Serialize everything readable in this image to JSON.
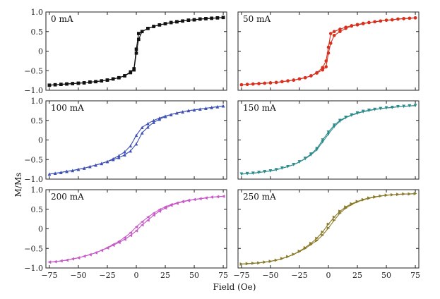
{
  "figure": {
    "ylabel": "M/Ms",
    "xlabel": "Field (Oe)"
  },
  "chart_data": [
    {
      "type": "line",
      "title": "0 mA",
      "color": "#111111",
      "marker": "square",
      "xlim": [
        -78,
        78
      ],
      "ylim": [
        -1.0,
        1.0
      ],
      "xticks": [
        -75,
        -50,
        -25,
        0,
        25,
        50,
        75
      ],
      "yticks": [
        -1.0,
        -0.5,
        0,
        0.5,
        1.0
      ],
      "ytick_labels": [
        "−1.0",
        "−0.5",
        "0",
        "0.5",
        "1.0"
      ],
      "series": [
        {
          "x": [
            -75,
            -70,
            -65,
            -60,
            -55,
            -50,
            -45,
            -40,
            -35,
            -30,
            -25,
            -20,
            -15,
            -10,
            -5,
            -2,
            0,
            2,
            5,
            10,
            15,
            20,
            25,
            30,
            35,
            40,
            45,
            50,
            55,
            60,
            65,
            70,
            75
          ],
          "y": [
            -0.87,
            -0.86,
            -0.85,
            -0.84,
            -0.83,
            -0.82,
            -0.81,
            -0.79,
            -0.78,
            -0.76,
            -0.74,
            -0.71,
            -0.68,
            -0.63,
            -0.55,
            -0.45,
            0.05,
            0.45,
            0.5,
            0.58,
            0.63,
            0.67,
            0.7,
            0.73,
            0.75,
            0.77,
            0.79,
            0.8,
            0.82,
            0.83,
            0.84,
            0.85,
            0.86
          ]
        },
        {
          "x": [
            -75,
            -70,
            -65,
            -60,
            -55,
            -50,
            -45,
            -40,
            -35,
            -30,
            -25,
            -20,
            -15,
            -10,
            -5,
            -2,
            0,
            2,
            5,
            10,
            15,
            20,
            25,
            30,
            35,
            40,
            45,
            50,
            55,
            60,
            65,
            70,
            75
          ],
          "y": [
            -0.87,
            -0.86,
            -0.85,
            -0.84,
            -0.83,
            -0.82,
            -0.81,
            -0.79,
            -0.78,
            -0.76,
            -0.74,
            -0.71,
            -0.68,
            -0.63,
            -0.53,
            -0.48,
            -0.05,
            0.3,
            0.5,
            0.58,
            0.63,
            0.67,
            0.7,
            0.73,
            0.75,
            0.77,
            0.79,
            0.8,
            0.82,
            0.83,
            0.84,
            0.85,
            0.86
          ]
        }
      ]
    },
    {
      "type": "line",
      "title": "50 mA",
      "color": "#d9301e",
      "marker": "circle",
      "xlim": [
        -78,
        78
      ],
      "ylim": [
        -1.0,
        1.0
      ],
      "xticks": [
        -75,
        -50,
        -25,
        0,
        25,
        50,
        75
      ],
      "yticks": [
        -1.0,
        -0.5,
        0,
        0.5,
        1.0
      ],
      "ytick_labels": [
        "",
        "",
        "",
        "",
        ""
      ],
      "series": [
        {
          "x": [
            -75,
            -70,
            -65,
            -60,
            -55,
            -50,
            -45,
            -40,
            -35,
            -30,
            -25,
            -20,
            -15,
            -10,
            -5,
            -2,
            0,
            2,
            5,
            10,
            15,
            20,
            25,
            30,
            35,
            40,
            45,
            50,
            55,
            60,
            65,
            70,
            75
          ],
          "y": [
            -0.86,
            -0.85,
            -0.84,
            -0.83,
            -0.82,
            -0.81,
            -0.8,
            -0.78,
            -0.76,
            -0.74,
            -0.71,
            -0.68,
            -0.63,
            -0.55,
            -0.42,
            -0.25,
            0.1,
            0.45,
            0.5,
            0.56,
            0.61,
            0.65,
            0.68,
            0.71,
            0.73,
            0.75,
            0.77,
            0.79,
            0.8,
            0.82,
            0.83,
            0.84,
            0.85
          ]
        },
        {
          "x": [
            -75,
            -70,
            -65,
            -60,
            -55,
            -50,
            -45,
            -40,
            -35,
            -30,
            -25,
            -20,
            -15,
            -10,
            -5,
            -2,
            0,
            2,
            5,
            10,
            15,
            20,
            25,
            30,
            35,
            40,
            45,
            50,
            55,
            60,
            65,
            70,
            75
          ],
          "y": [
            -0.86,
            -0.85,
            -0.84,
            -0.83,
            -0.82,
            -0.81,
            -0.8,
            -0.78,
            -0.76,
            -0.74,
            -0.71,
            -0.68,
            -0.63,
            -0.56,
            -0.48,
            -0.4,
            -0.05,
            0.2,
            0.4,
            0.5,
            0.58,
            0.64,
            0.67,
            0.7,
            0.73,
            0.75,
            0.77,
            0.79,
            0.8,
            0.82,
            0.83,
            0.84,
            0.85
          ]
        }
      ]
    },
    {
      "type": "line",
      "title": "100 mA",
      "color": "#3f51b5",
      "marker": "triangle-up",
      "xlim": [
        -78,
        78
      ],
      "ylim": [
        -1.0,
        1.0
      ],
      "xticks": [
        -75,
        -50,
        -25,
        0,
        25,
        50,
        75
      ],
      "yticks": [
        -1.0,
        -0.5,
        0,
        0.5,
        1.0
      ],
      "ytick_labels": [
        "−1.0",
        "−0.5",
        "0",
        "0.5",
        "1.0"
      ],
      "series": [
        {
          "x": [
            -75,
            -70,
            -65,
            -60,
            -55,
            -50,
            -45,
            -40,
            -35,
            -30,
            -25,
            -20,
            -15,
            -10,
            -5,
            0,
            5,
            10,
            15,
            20,
            25,
            30,
            35,
            40,
            45,
            50,
            55,
            60,
            65,
            70,
            75
          ],
          "y": [
            -0.87,
            -0.85,
            -0.83,
            -0.8,
            -0.78,
            -0.75,
            -0.72,
            -0.68,
            -0.64,
            -0.6,
            -0.55,
            -0.48,
            -0.4,
            -0.3,
            -0.15,
            0.12,
            0.32,
            0.42,
            0.5,
            0.56,
            0.61,
            0.65,
            0.69,
            0.72,
            0.75,
            0.77,
            0.79,
            0.81,
            0.83,
            0.85,
            0.87
          ]
        },
        {
          "x": [
            -75,
            -70,
            -65,
            -60,
            -55,
            -50,
            -45,
            -40,
            -35,
            -30,
            -25,
            -20,
            -15,
            -10,
            -5,
            0,
            5,
            10,
            15,
            20,
            25,
            30,
            35,
            40,
            45,
            50,
            55,
            60,
            65,
            70,
            75
          ],
          "y": [
            -0.87,
            -0.85,
            -0.83,
            -0.8,
            -0.78,
            -0.75,
            -0.72,
            -0.68,
            -0.64,
            -0.6,
            -0.55,
            -0.5,
            -0.45,
            -0.38,
            -0.28,
            -0.1,
            0.18,
            0.33,
            0.45,
            0.53,
            0.6,
            0.65,
            0.69,
            0.72,
            0.75,
            0.77,
            0.79,
            0.81,
            0.83,
            0.85,
            0.87
          ]
        }
      ]
    },
    {
      "type": "line",
      "title": "150 mA",
      "color": "#2e8b8b",
      "marker": "triangle-down",
      "xlim": [
        -78,
        78
      ],
      "ylim": [
        -1.0,
        1.0
      ],
      "xticks": [
        -75,
        -50,
        -25,
        0,
        25,
        50,
        75
      ],
      "yticks": [
        -1.0,
        -0.5,
        0,
        0.5,
        1.0
      ],
      "ytick_labels": [
        "",
        "",
        "",
        "",
        ""
      ],
      "series": [
        {
          "x": [
            -75,
            -70,
            -65,
            -60,
            -55,
            -50,
            -45,
            -40,
            -35,
            -30,
            -25,
            -20,
            -15,
            -10,
            -5,
            0,
            5,
            10,
            15,
            20,
            25,
            30,
            35,
            40,
            45,
            50,
            55,
            60,
            65,
            70,
            75
          ],
          "y": [
            -0.87,
            -0.86,
            -0.85,
            -0.83,
            -0.81,
            -0.79,
            -0.76,
            -0.72,
            -0.68,
            -0.63,
            -0.56,
            -0.47,
            -0.36,
            -0.22,
            0.0,
            0.2,
            0.38,
            0.5,
            0.58,
            0.64,
            0.69,
            0.73,
            0.76,
            0.78,
            0.8,
            0.82,
            0.83,
            0.85,
            0.86,
            0.87,
            0.88
          ]
        },
        {
          "x": [
            -75,
            -70,
            -65,
            -60,
            -55,
            -50,
            -45,
            -40,
            -35,
            -30,
            -25,
            -20,
            -15,
            -10,
            -5,
            0,
            5,
            10,
            15,
            20,
            25,
            30,
            35,
            40,
            45,
            50,
            55,
            60,
            65,
            70,
            75
          ],
          "y": [
            -0.87,
            -0.86,
            -0.85,
            -0.83,
            -0.81,
            -0.79,
            -0.76,
            -0.72,
            -0.68,
            -0.63,
            -0.56,
            -0.48,
            -0.38,
            -0.25,
            -0.05,
            0.15,
            0.34,
            0.48,
            0.57,
            0.63,
            0.68,
            0.72,
            0.75,
            0.78,
            0.8,
            0.82,
            0.83,
            0.85,
            0.86,
            0.87,
            0.88
          ]
        }
      ]
    },
    {
      "type": "line",
      "title": "200 mA",
      "color": "#c75ac7",
      "marker": "triangle-left",
      "xlim": [
        -78,
        78
      ],
      "ylim": [
        -1.0,
        1.0
      ],
      "xticks": [
        -75,
        -50,
        -25,
        0,
        25,
        50,
        75
      ],
      "yticks": [
        -1.0,
        -0.5,
        0,
        0.5,
        1.0
      ],
      "ytick_labels": [
        "−1.0",
        "−0.5",
        "0",
        "0.5",
        "1.0"
      ],
      "series": [
        {
          "x": [
            -75,
            -70,
            -65,
            -60,
            -55,
            -50,
            -45,
            -40,
            -35,
            -30,
            -25,
            -20,
            -15,
            -10,
            -5,
            0,
            5,
            10,
            15,
            20,
            25,
            30,
            35,
            40,
            45,
            50,
            55,
            60,
            65,
            70,
            75
          ],
          "y": [
            -0.85,
            -0.84,
            -0.82,
            -0.8,
            -0.77,
            -0.74,
            -0.7,
            -0.66,
            -0.61,
            -0.55,
            -0.48,
            -0.4,
            -0.32,
            -0.22,
            -0.1,
            0.05,
            0.18,
            0.3,
            0.4,
            0.49,
            0.56,
            0.62,
            0.66,
            0.7,
            0.73,
            0.75,
            0.77,
            0.79,
            0.81,
            0.82,
            0.83
          ]
        },
        {
          "x": [
            -75,
            -70,
            -65,
            -60,
            -55,
            -50,
            -45,
            -40,
            -35,
            -30,
            -25,
            -20,
            -15,
            -10,
            -5,
            0,
            5,
            10,
            15,
            20,
            25,
            30,
            35,
            40,
            45,
            50,
            55,
            60,
            65,
            70,
            75
          ],
          "y": [
            -0.85,
            -0.84,
            -0.82,
            -0.8,
            -0.77,
            -0.74,
            -0.7,
            -0.66,
            -0.61,
            -0.55,
            -0.49,
            -0.42,
            -0.35,
            -0.27,
            -0.17,
            -0.05,
            0.1,
            0.22,
            0.35,
            0.45,
            0.53,
            0.6,
            0.65,
            0.69,
            0.72,
            0.75,
            0.77,
            0.79,
            0.81,
            0.82,
            0.83
          ]
        }
      ]
    },
    {
      "type": "line",
      "title": "250 mA",
      "color": "#8a7a2a",
      "marker": "triangle-right",
      "xlim": [
        -78,
        78
      ],
      "ylim": [
        -1.0,
        1.0
      ],
      "xticks": [
        -75,
        -50,
        -25,
        0,
        25,
        50,
        75
      ],
      "yticks": [
        -1.0,
        -0.5,
        0,
        0.5,
        1.0
      ],
      "ytick_labels": [
        "",
        "",
        "",
        "",
        ""
      ],
      "series": [
        {
          "x": [
            -75,
            -70,
            -65,
            -60,
            -55,
            -50,
            -45,
            -40,
            -35,
            -30,
            -25,
            -20,
            -15,
            -10,
            -5,
            0,
            5,
            10,
            15,
            20,
            25,
            30,
            35,
            40,
            45,
            50,
            55,
            60,
            65,
            70,
            75
          ],
          "y": [
            -0.9,
            -0.89,
            -0.88,
            -0.87,
            -0.85,
            -0.83,
            -0.8,
            -0.76,
            -0.71,
            -0.65,
            -0.57,
            -0.48,
            -0.37,
            -0.24,
            -0.08,
            0.12,
            0.3,
            0.45,
            0.56,
            0.64,
            0.7,
            0.75,
            0.79,
            0.82,
            0.84,
            0.86,
            0.87,
            0.88,
            0.89,
            0.89,
            0.9
          ]
        },
        {
          "x": [
            -75,
            -70,
            -65,
            -60,
            -55,
            -50,
            -45,
            -40,
            -35,
            -30,
            -25,
            -20,
            -15,
            -10,
            -5,
            0,
            5,
            10,
            15,
            20,
            25,
            30,
            35,
            40,
            45,
            50,
            55,
            60,
            65,
            70,
            75
          ],
          "y": [
            -0.9,
            -0.89,
            -0.88,
            -0.87,
            -0.85,
            -0.83,
            -0.8,
            -0.76,
            -0.71,
            -0.65,
            -0.58,
            -0.5,
            -0.4,
            -0.3,
            -0.16,
            0.02,
            0.22,
            0.4,
            0.53,
            0.62,
            0.69,
            0.74,
            0.78,
            0.81,
            0.84,
            0.86,
            0.87,
            0.88,
            0.89,
            0.89,
            0.9
          ]
        }
      ]
    }
  ]
}
